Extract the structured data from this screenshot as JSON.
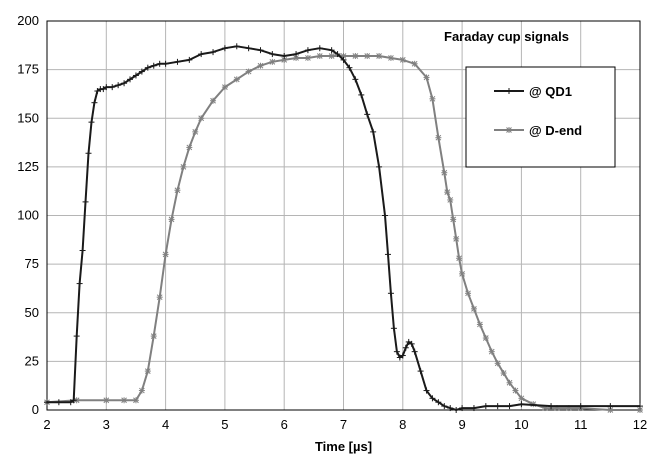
{
  "chart_data": {
    "type": "line",
    "title": "Faraday cup signals",
    "xlabel": "Time [µs]",
    "ylabel": "",
    "xlim": [
      2,
      12
    ],
    "ylim": [
      0,
      200
    ],
    "xticks": [
      2,
      3,
      4,
      5,
      6,
      7,
      8,
      9,
      10,
      11,
      12
    ],
    "yticks": [
      0,
      25,
      50,
      75,
      100,
      125,
      150,
      175,
      200
    ],
    "grid": true,
    "legend_position": "top-right",
    "series": [
      {
        "name": "@ QD1",
        "color": "#1a1a1a",
        "marker": "plus",
        "x": [
          2.0,
          2.2,
          2.4,
          2.45,
          2.5,
          2.55,
          2.6,
          2.65,
          2.7,
          2.75,
          2.8,
          2.85,
          2.9,
          2.95,
          3.0,
          3.1,
          3.2,
          3.3,
          3.4,
          3.5,
          3.6,
          3.7,
          3.8,
          3.9,
          4.0,
          4.2,
          4.4,
          4.6,
          4.8,
          5.0,
          5.2,
          5.4,
          5.6,
          5.8,
          6.0,
          6.2,
          6.4,
          6.6,
          6.8,
          6.9,
          7.0,
          7.1,
          7.2,
          7.3,
          7.4,
          7.5,
          7.6,
          7.7,
          7.75,
          7.8,
          7.85,
          7.9,
          7.95,
          8.0,
          8.05,
          8.1,
          8.15,
          8.2,
          8.3,
          8.4,
          8.5,
          8.6,
          8.7,
          8.8,
          8.9,
          9.0,
          9.2,
          9.4,
          9.6,
          9.8,
          10.0,
          10.5,
          11.0,
          11.5,
          12.0
        ],
        "y": [
          4,
          4,
          4,
          5,
          38,
          65,
          82,
          107,
          132,
          148,
          158,
          164,
          165,
          165,
          166,
          166,
          167,
          168,
          170,
          172,
          174,
          176,
          177,
          178,
          178,
          179,
          180,
          183,
          184,
          186,
          187,
          186,
          185,
          183,
          182,
          183,
          185,
          186,
          185,
          183,
          180,
          176,
          170,
          162,
          152,
          143,
          125,
          100,
          80,
          60,
          42,
          30,
          27,
          28,
          32,
          35,
          34,
          30,
          20,
          10,
          6,
          4,
          2,
          1,
          0,
          1,
          1,
          2,
          2,
          2,
          3,
          2,
          2,
          2,
          2
        ]
      },
      {
        "name": "@ D-end",
        "color": "#808080",
        "marker": "star",
        "x": [
          2.0,
          2.5,
          3.0,
          3.3,
          3.5,
          3.6,
          3.7,
          3.8,
          3.9,
          4.0,
          4.1,
          4.2,
          4.3,
          4.4,
          4.5,
          4.6,
          4.8,
          5.0,
          5.2,
          5.4,
          5.6,
          5.8,
          6.0,
          6.2,
          6.4,
          6.6,
          6.8,
          7.0,
          7.2,
          7.4,
          7.6,
          7.8,
          8.0,
          8.2,
          8.4,
          8.5,
          8.6,
          8.7,
          8.75,
          8.8,
          8.85,
          8.9,
          8.95,
          9.0,
          9.1,
          9.2,
          9.3,
          9.4,
          9.5,
          9.6,
          9.7,
          9.8,
          9.9,
          10.0,
          10.2,
          10.4,
          10.6,
          10.8,
          11.0,
          11.5,
          12.0
        ],
        "y": [
          4,
          5,
          5,
          5,
          5,
          10,
          20,
          38,
          58,
          80,
          98,
          113,
          125,
          135,
          143,
          150,
          159,
          166,
          170,
          174,
          177,
          179,
          180,
          181,
          181,
          182,
          182,
          182,
          182,
          182,
          182,
          181,
          180,
          178,
          171,
          160,
          140,
          122,
          112,
          108,
          98,
          88,
          78,
          70,
          60,
          52,
          44,
          37,
          30,
          24,
          19,
          14,
          10,
          6,
          3,
          1,
          1,
          1,
          1,
          0,
          0
        ]
      }
    ]
  }
}
